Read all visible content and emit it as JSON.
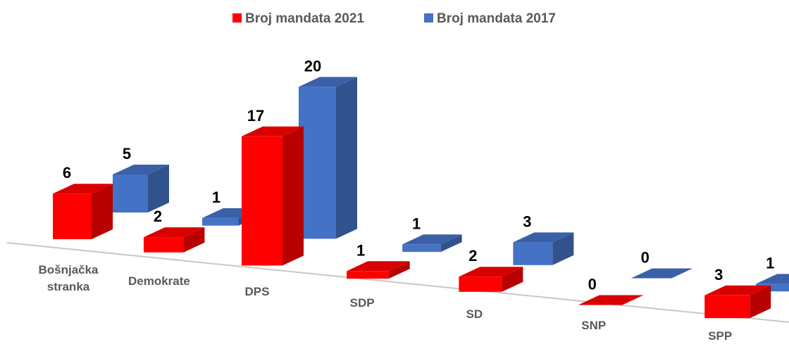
{
  "chart_data": {
    "type": "bar3d",
    "categories": [
      "Bošnjačka stranka",
      "Demokrate",
      "DPS",
      "SDP",
      "SD",
      "SNP",
      "SPP"
    ],
    "series": [
      {
        "name": "Broj mandata 2021",
        "color": "#ff0000",
        "values": [
          6,
          2,
          17,
          1,
          2,
          0,
          3
        ]
      },
      {
        "name": "Broj mandata 2017",
        "color": "#4472c4",
        "values": [
          5,
          1,
          20,
          1,
          3,
          0,
          1
        ]
      }
    ],
    "legend": "top"
  }
}
